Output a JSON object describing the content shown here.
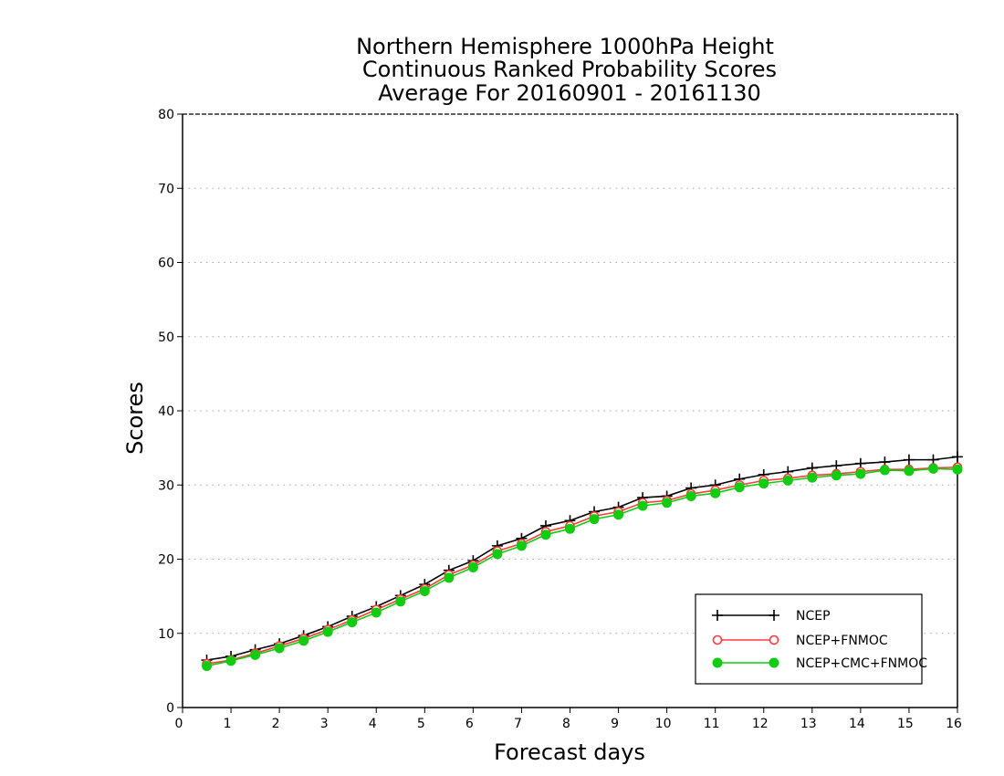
{
  "chart_data": {
    "type": "line",
    "title_lines": [
      "Northern Hemisphere 1000hPa Height",
      "Continuous Ranked Probability Scores",
      "Average For 20160901 - 20161130"
    ],
    "xlabel": "Forecast days",
    "ylabel": "Scores",
    "xlim": [
      0,
      16
    ],
    "ylim": [
      0,
      80
    ],
    "xticks": [
      "0",
      "1",
      "2",
      "3",
      "4",
      "5",
      "6",
      "7",
      "8",
      "9",
      "10",
      "11",
      "12",
      "13",
      "14",
      "15",
      "16"
    ],
    "yticks": [
      "0",
      "10",
      "20",
      "30",
      "40",
      "50",
      "60",
      "70",
      "80"
    ],
    "grid": true,
    "legend_position": "bottom-right",
    "x": [
      0.5,
      1,
      1.5,
      2,
      2.5,
      3,
      3.5,
      4,
      4.5,
      5,
      5.5,
      6,
      6.5,
      7,
      7.5,
      8,
      8.5,
      9,
      9.5,
      10,
      10.5,
      11,
      11.5,
      12,
      12.5,
      13,
      13.5,
      14,
      14.5,
      15,
      15.5,
      16
    ],
    "series": [
      {
        "name": "NCEP",
        "color": "#000000",
        "marker": "plus",
        "values": [
          6.4,
          6.9,
          7.8,
          8.6,
          9.7,
          10.9,
          12.3,
          13.6,
          15.1,
          16.6,
          18.5,
          19.8,
          21.8,
          22.8,
          24.5,
          25.2,
          26.4,
          27.0,
          28.3,
          28.5,
          29.6,
          30.0,
          30.8,
          31.4,
          31.8,
          32.3,
          32.6,
          32.9,
          33.1,
          33.4,
          33.4,
          33.8
        ]
      },
      {
        "name": "NCEP+FNMOC",
        "color": "#ff3b3b",
        "marker": "open-circle",
        "values": [
          5.9,
          6.4,
          7.3,
          8.3,
          9.3,
          10.5,
          11.8,
          13.2,
          14.6,
          16.0,
          17.9,
          19.2,
          21.1,
          22.1,
          23.7,
          24.5,
          25.8,
          26.4,
          27.6,
          27.9,
          28.8,
          29.3,
          30.0,
          30.6,
          30.9,
          31.3,
          31.5,
          31.8,
          32.1,
          32.1,
          32.3,
          32.4
        ]
      },
      {
        "name": "NCEP+CMC+FNMOC",
        "color": "#11cc11",
        "marker": "filled-circle",
        "values": [
          5.6,
          6.3,
          7.1,
          8.0,
          9.0,
          10.2,
          11.5,
          12.8,
          14.3,
          15.7,
          17.5,
          18.9,
          20.7,
          21.8,
          23.3,
          24.1,
          25.4,
          26.0,
          27.2,
          27.6,
          28.5,
          28.9,
          29.7,
          30.2,
          30.6,
          31.0,
          31.3,
          31.5,
          32.0,
          31.9,
          32.2,
          32.1
        ]
      }
    ]
  }
}
